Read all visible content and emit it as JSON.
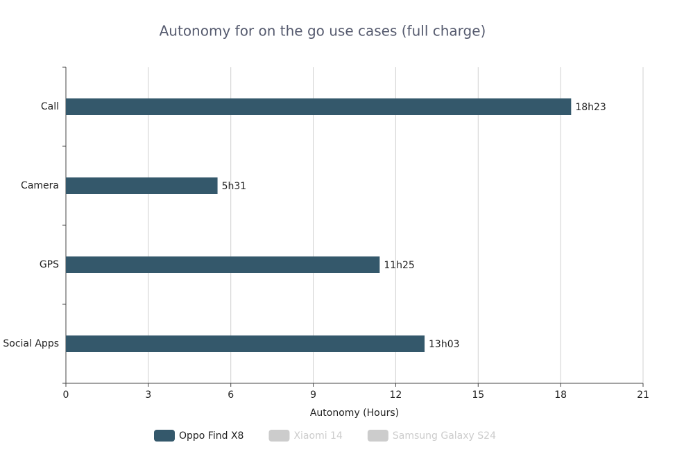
{
  "chart_data": {
    "type": "hbar",
    "title": "Autonomy for on the go use cases (full charge)",
    "x_label": "Autonomy (Hours)",
    "categories": [
      "Call",
      "Camera",
      "GPS",
      "Social Apps"
    ],
    "series": [
      {
        "name": "Oppo Find X8",
        "color": "#34586b",
        "visible": true,
        "values": [
          18.383,
          5.517,
          11.417,
          13.05
        ],
        "value_labels": [
          "18h23",
          "5h31",
          "11h25",
          "13h03"
        ]
      },
      {
        "name": "Xiaomi 14",
        "color": "#cccccc",
        "visible": false,
        "values": [
          null,
          null,
          null,
          null
        ]
      },
      {
        "name": "Samsung Galaxy S24",
        "color": "#cccccc",
        "visible": false,
        "values": [
          null,
          null,
          null,
          null
        ]
      }
    ],
    "xlim": [
      0,
      21
    ],
    "xticks": [
      0,
      3,
      6,
      9,
      12,
      15,
      18,
      21
    ],
    "grid": true
  }
}
